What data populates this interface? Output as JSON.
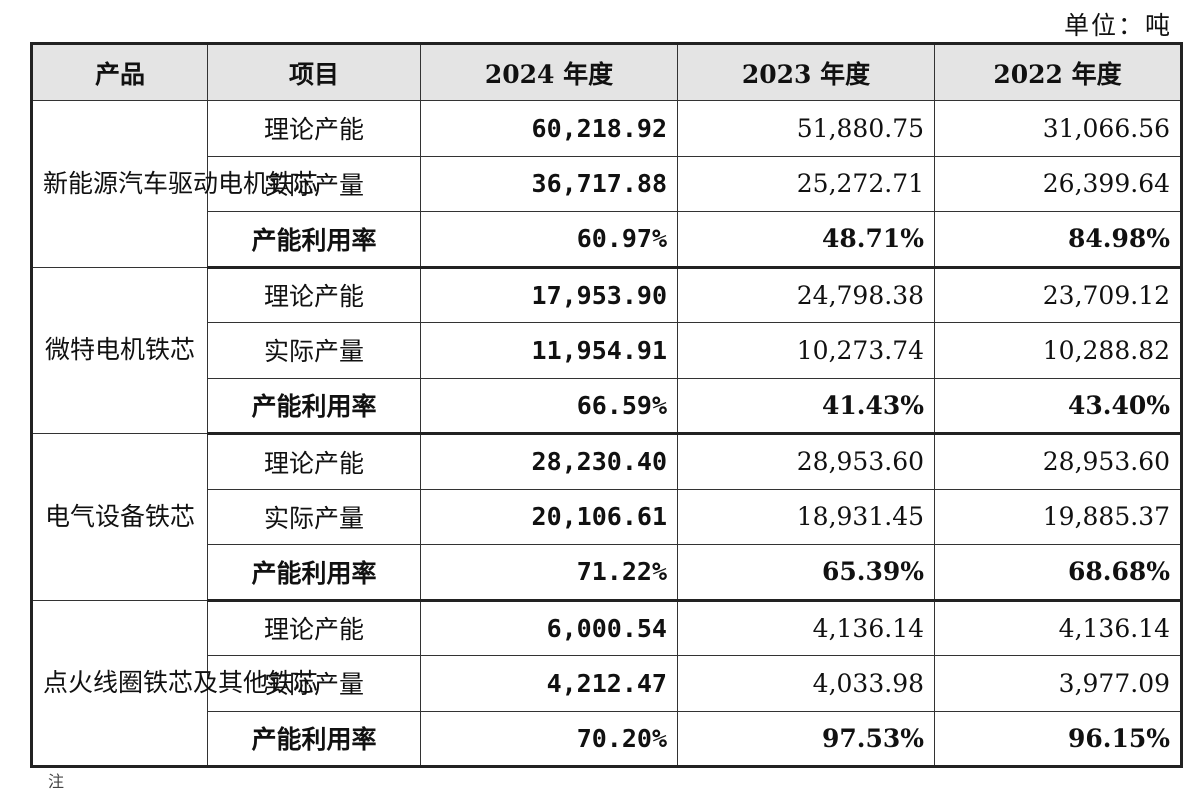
{
  "unit_label": "单位：吨",
  "headers": [
    "产品",
    "项目",
    "2024 年度",
    "2023 年度",
    "2022 年度"
  ],
  "groups": [
    {
      "product": "新能源汽车驱动电机铁芯",
      "rows": [
        {
          "item": "理论产能",
          "y2024": "60,218.92",
          "y2023": "51,880.75",
          "y2022": "31,066.56"
        },
        {
          "item": "实际产量",
          "y2024": "36,717.88",
          "y2023": "25,272.71",
          "y2022": "26,399.64"
        },
        {
          "item": "产能利用率",
          "y2024": "60.97%",
          "y2023": "48.71%",
          "y2022": "84.98%"
        }
      ]
    },
    {
      "product": "微特电机铁芯",
      "rows": [
        {
          "item": "理论产能",
          "y2024": "17,953.90",
          "y2023": "24,798.38",
          "y2022": "23,709.12"
        },
        {
          "item": "实际产量",
          "y2024": "11,954.91",
          "y2023": "10,273.74",
          "y2022": "10,288.82"
        },
        {
          "item": "产能利用率",
          "y2024": "66.59%",
          "y2023": "41.43%",
          "y2022": "43.40%"
        }
      ]
    },
    {
      "product": "电气设备铁芯",
      "rows": [
        {
          "item": "理论产能",
          "y2024": "28,230.40",
          "y2023": "28,953.60",
          "y2022": "28,953.60"
        },
        {
          "item": "实际产量",
          "y2024": "20,106.61",
          "y2023": "18,931.45",
          "y2022": "19,885.37"
        },
        {
          "item": "产能利用率",
          "y2024": "71.22%",
          "y2023": "65.39%",
          "y2022": "68.68%"
        }
      ]
    },
    {
      "product": "点火线圈铁芯及其他铁芯",
      "rows": [
        {
          "item": "理论产能",
          "y2024": "6,000.54",
          "y2023": "4,136.14",
          "y2022": "4,136.14"
        },
        {
          "item": "实际产量",
          "y2024": "4,212.47",
          "y2023": "4,033.98",
          "y2022": "3,977.09"
        },
        {
          "item": "产能利用率",
          "y2024": "70.20%",
          "y2023": "97.53%",
          "y2022": "96.15%"
        }
      ]
    }
  ],
  "footnote": "注"
}
